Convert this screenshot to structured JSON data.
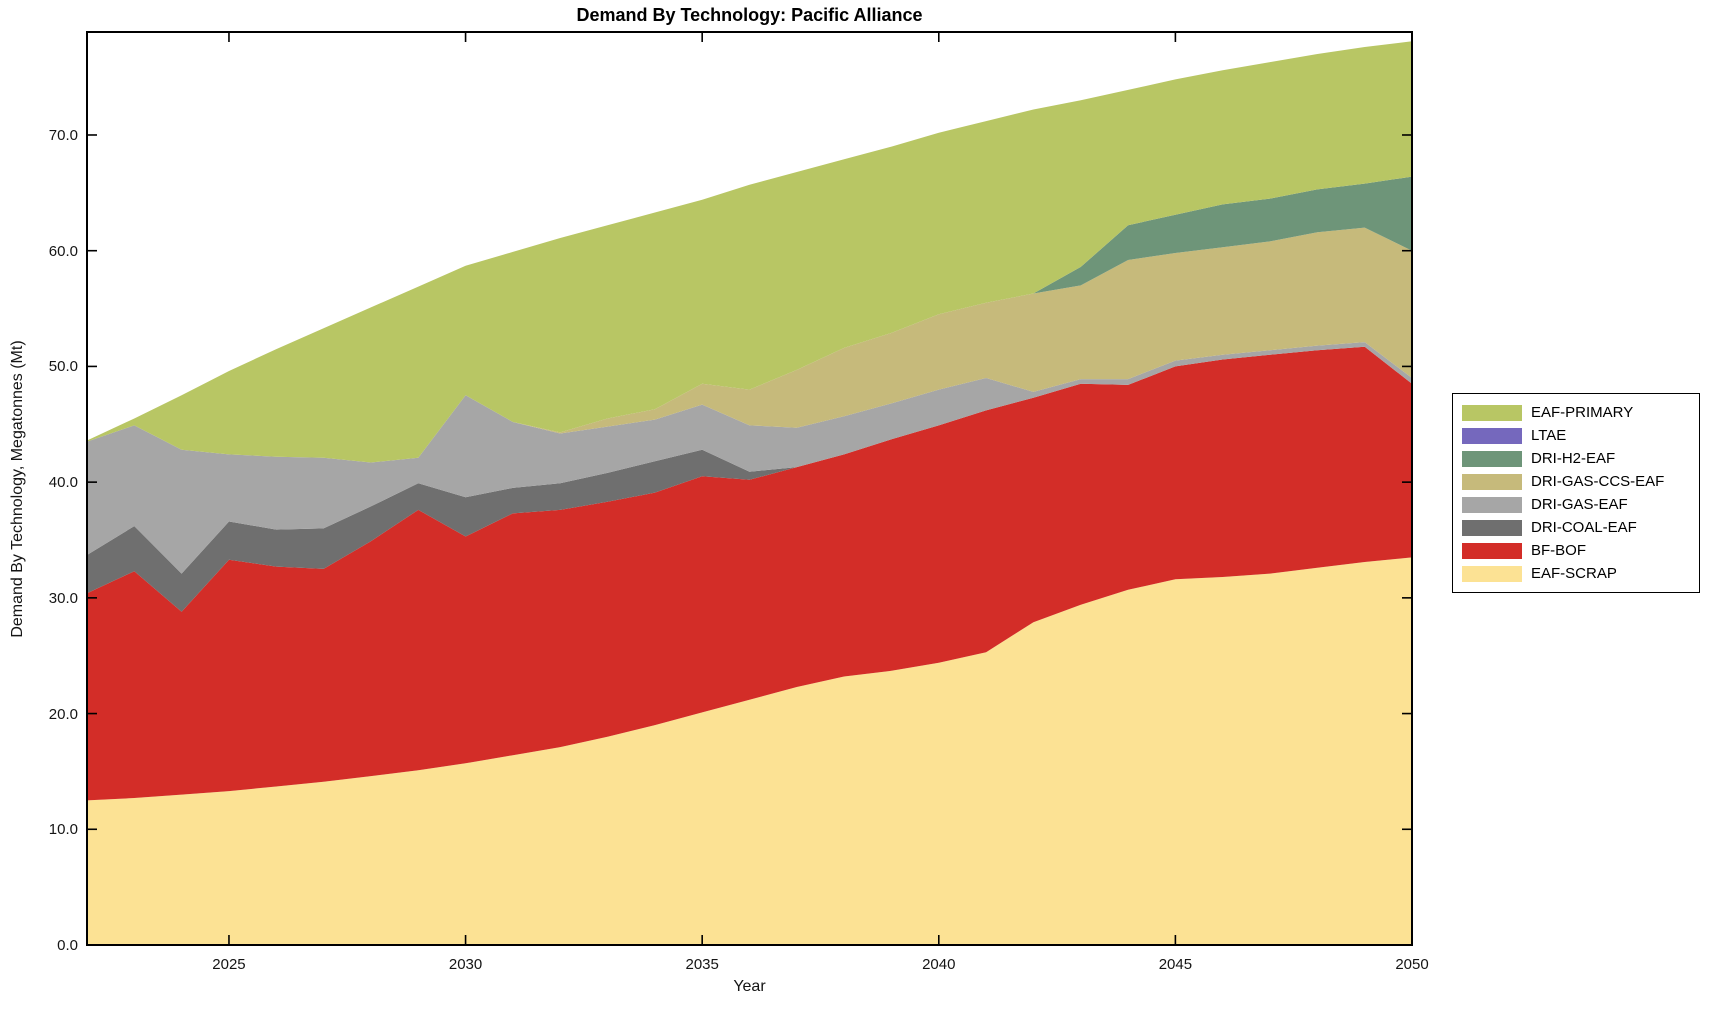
{
  "title": "Demand By Technology: Pacific Alliance",
  "axes": {
    "xlabel": "Year",
    "ylabel": "Demand By Technology, Megatonnes (Mt)",
    "x_tick_values": [
      2025,
      2030,
      2035,
      2040,
      2045,
      2050
    ],
    "x_tick_labels": [
      "2025",
      "2030",
      "2035",
      "2040",
      "2045",
      "2050"
    ],
    "y_tick_values": [
      0,
      10,
      20,
      30,
      40,
      50,
      60,
      70
    ],
    "y_tick_labels": [
      "0.0",
      "10.0",
      "20.0",
      "30.0",
      "40.0",
      "50.0",
      "60.0",
      "70.0"
    ]
  },
  "legend": {
    "entries": [
      {
        "label": "EAF-PRIMARY",
        "color": "#b8c664"
      },
      {
        "label": "LTAE",
        "color": "#7568bd"
      },
      {
        "label": "DRI-H2-EAF",
        "color": "#6e9579"
      },
      {
        "label": "DRI-GAS-CCS-EAF",
        "color": "#c6ba7b"
      },
      {
        "label": "DRI-GAS-EAF",
        "color": "#a6a6a6"
      },
      {
        "label": "DRI-COAL-EAF",
        "color": "#6f6f6f"
      },
      {
        "label": "BF-BOF",
        "color": "#d32d28"
      },
      {
        "label": "EAF-SCRAP",
        "color": "#fce294"
      }
    ]
  },
  "chart_data": {
    "type": "area",
    "stacked": true,
    "title": "Demand By Technology: Pacific Alliance",
    "xlabel": "Year",
    "ylabel": "Demand By Technology, Megatonnes (Mt)",
    "xlim": [
      2022,
      2050
    ],
    "ylim": [
      0,
      78.9
    ],
    "grid": false,
    "legend_position": "outside-right",
    "x": [
      2022,
      2023,
      2024,
      2025,
      2026,
      2027,
      2028,
      2029,
      2030,
      2031,
      2032,
      2033,
      2034,
      2035,
      2036,
      2037,
      2038,
      2039,
      2040,
      2041,
      2042,
      2043,
      2044,
      2045,
      2046,
      2047,
      2048,
      2049,
      2050
    ],
    "stack_order_note": "series listed bottom-to-top of the stack",
    "series": [
      {
        "name": "EAF-SCRAP",
        "color": "#fce294",
        "values": [
          12.5,
          12.7,
          13.0,
          13.3,
          13.7,
          14.1,
          14.6,
          15.1,
          15.7,
          16.4,
          17.1,
          18.0,
          19.0,
          20.1,
          21.2,
          22.3,
          23.2,
          23.7,
          24.4,
          25.3,
          27.9,
          29.4,
          30.7,
          31.6,
          31.8,
          32.1,
          32.6,
          33.1,
          33.5
        ]
      },
      {
        "name": "BF-BOF",
        "color": "#d32d28",
        "values": [
          17.9,
          19.6,
          15.8,
          20.0,
          19.0,
          18.4,
          20.3,
          22.5,
          19.6,
          20.9,
          20.5,
          20.3,
          20.1,
          20.4,
          19.0,
          19.0,
          19.2,
          20.0,
          20.5,
          20.9,
          19.4,
          19.1,
          17.7,
          18.4,
          18.8,
          18.9,
          18.8,
          18.6,
          15.0
        ]
      },
      {
        "name": "DRI-COAL-EAF",
        "color": "#6f6f6f",
        "values": [
          3.3,
          3.9,
          3.3,
          3.3,
          3.2,
          3.5,
          3.0,
          2.3,
          3.4,
          2.2,
          2.3,
          2.5,
          2.7,
          2.3,
          0.7,
          0,
          0,
          0,
          0,
          0,
          0,
          0,
          0,
          0,
          0,
          0,
          0,
          0,
          0
        ]
      },
      {
        "name": "DRI-GAS-EAF",
        "color": "#a6a6a6",
        "values": [
          9.8,
          8.7,
          10.7,
          5.8,
          6.3,
          6.1,
          3.8,
          2.2,
          8.8,
          5.7,
          4.3,
          4.0,
          3.6,
          3.9,
          4.0,
          3.4,
          3.3,
          3.1,
          3.1,
          2.8,
          0.5,
          0.4,
          0.5,
          0.5,
          0.4,
          0.4,
          0.4,
          0.4,
          0.5
        ]
      },
      {
        "name": "DRI-GAS-CCS-EAF",
        "color": "#c6ba7b",
        "values": [
          0,
          0,
          0,
          0,
          0,
          0,
          0,
          0,
          0,
          0,
          0.1,
          0.7,
          0.9,
          1.8,
          3.1,
          5.0,
          5.9,
          6.1,
          6.5,
          6.5,
          8.5,
          8.1,
          10.3,
          9.3,
          9.3,
          9.4,
          9.8,
          9.9,
          11.0
        ]
      },
      {
        "name": "DRI-H2-EAF",
        "color": "#6e9579",
        "values": [
          0,
          0,
          0,
          0,
          0,
          0,
          0,
          0,
          0,
          0,
          0,
          0,
          0,
          0,
          0,
          0,
          0,
          0,
          0,
          0,
          0,
          1.6,
          3.0,
          3.3,
          3.7,
          3.7,
          3.7,
          3.8,
          6.4
        ]
      },
      {
        "name": "LTAE",
        "color": "#7568bd",
        "values": [
          0,
          0,
          0,
          0,
          0,
          0,
          0,
          0,
          0,
          0,
          0,
          0,
          0,
          0,
          0,
          0,
          0,
          0,
          0,
          0,
          0,
          0,
          0,
          0,
          0,
          0,
          0,
          0,
          0
        ]
      },
      {
        "name": "EAF-PRIMARY",
        "color": "#b8c664",
        "values": [
          0.1,
          0.6,
          4.7,
          7.2,
          9.3,
          11.2,
          13.4,
          14.8,
          11.2,
          14.7,
          16.8,
          16.7,
          17.0,
          15.9,
          17.7,
          17.1,
          16.3,
          16.1,
          15.7,
          15.7,
          15.9,
          14.4,
          11.7,
          11.7,
          11.6,
          11.8,
          11.7,
          11.8,
          11.7
        ]
      }
    ]
  }
}
